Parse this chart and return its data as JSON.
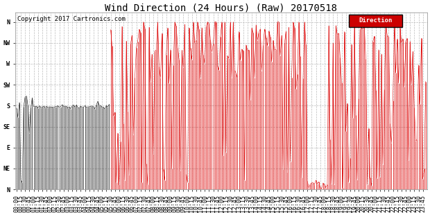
{
  "title": "Wind Direction (24 Hours) (Raw) 20170518",
  "copyright": "Copyright 2017 Cartronics.com",
  "legend_label": "Direction",
  "legend_bg": "#cc0000",
  "legend_text_color": "#ffffff",
  "bg_color": "#ffffff",
  "plot_bg_color": "#ffffff",
  "line_color_red": "#dd0000",
  "line_color_dark": "#222222",
  "ytick_labels": [
    "N",
    "NW",
    "W",
    "SW",
    "S",
    "SE",
    "E",
    "NE",
    "N"
  ],
  "ytick_values": [
    360,
    315,
    270,
    225,
    180,
    135,
    90,
    45,
    0
  ],
  "ylim": [
    0,
    380
  ],
  "grid_color": "#bbbbbb",
  "grid_style": "--",
  "title_fontsize": 10,
  "copyright_fontsize": 6.5,
  "tick_fontsize": 6
}
